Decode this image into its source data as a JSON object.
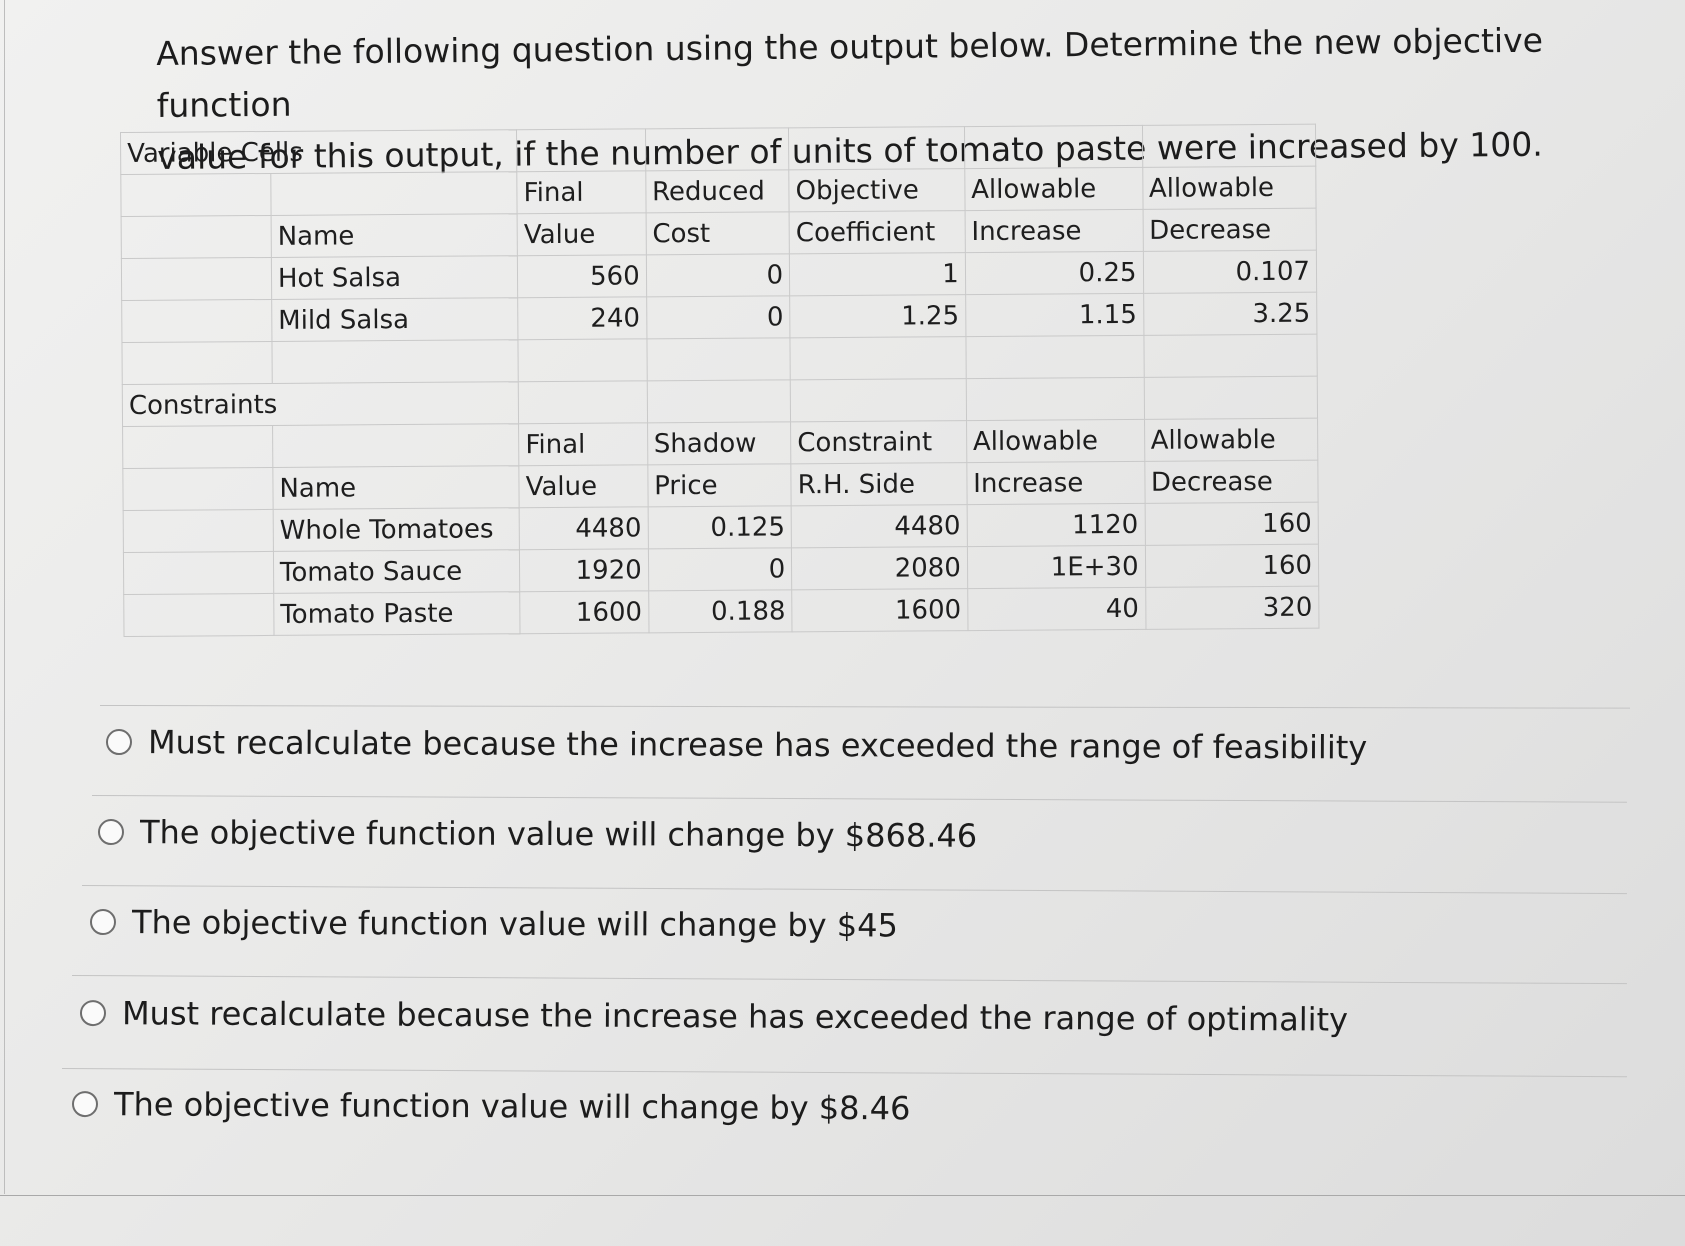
{
  "question": {
    "line1": "Answer the following question using the output below. Determine the new objective function",
    "line2": "value for this output, if the number of units of tomato paste were increased by 100."
  },
  "variable_cells": {
    "title": "Variable Cells",
    "headers_top": [
      "Final",
      "Reduced",
      "Objective",
      "Allowable",
      "Allowable"
    ],
    "headers_bottom": [
      "Name",
      "Value",
      "Cost",
      "Coefficient",
      "Increase",
      "Decrease"
    ],
    "rows": [
      {
        "name": "Hot Salsa",
        "final_value": "560",
        "reduced_cost": "0",
        "objective_coefficient": "1",
        "allowable_increase": "0.25",
        "allowable_decrease": "0.107"
      },
      {
        "name": "Mild Salsa",
        "final_value": "240",
        "reduced_cost": "0",
        "objective_coefficient": "1.25",
        "allowable_increase": "1.15",
        "allowable_decrease": "3.25"
      }
    ]
  },
  "constraints": {
    "title": "Constraints",
    "headers_top": [
      "Final",
      "Shadow",
      "Constraint",
      "Allowable",
      "Allowable"
    ],
    "headers_bottom": [
      "Name",
      "Value",
      "Price",
      "R.H. Side",
      "Increase",
      "Decrease"
    ],
    "rows": [
      {
        "name": "Whole Tomatoes",
        "final_value": "4480",
        "shadow_price": "0.125",
        "rh_side": "4480",
        "allowable_increase": "1120",
        "allowable_decrease": "160"
      },
      {
        "name": "Tomato Sauce",
        "final_value": "1920",
        "shadow_price": "0",
        "rh_side": "2080",
        "allowable_increase": "1E+30",
        "allowable_decrease": "160"
      },
      {
        "name": "Tomato Paste",
        "final_value": "1600",
        "shadow_price": "0.188",
        "rh_side": "1600",
        "allowable_increase": "40",
        "allowable_decrease": "320"
      }
    ]
  },
  "options": [
    "Must recalculate because the increase has exceeded the range of feasibility",
    "The objective function value will change by $868.46",
    "The objective function value will change by $45",
    "Must recalculate because the increase has exceeded the range of optimality",
    "The objective function value will change by $8.46"
  ]
}
